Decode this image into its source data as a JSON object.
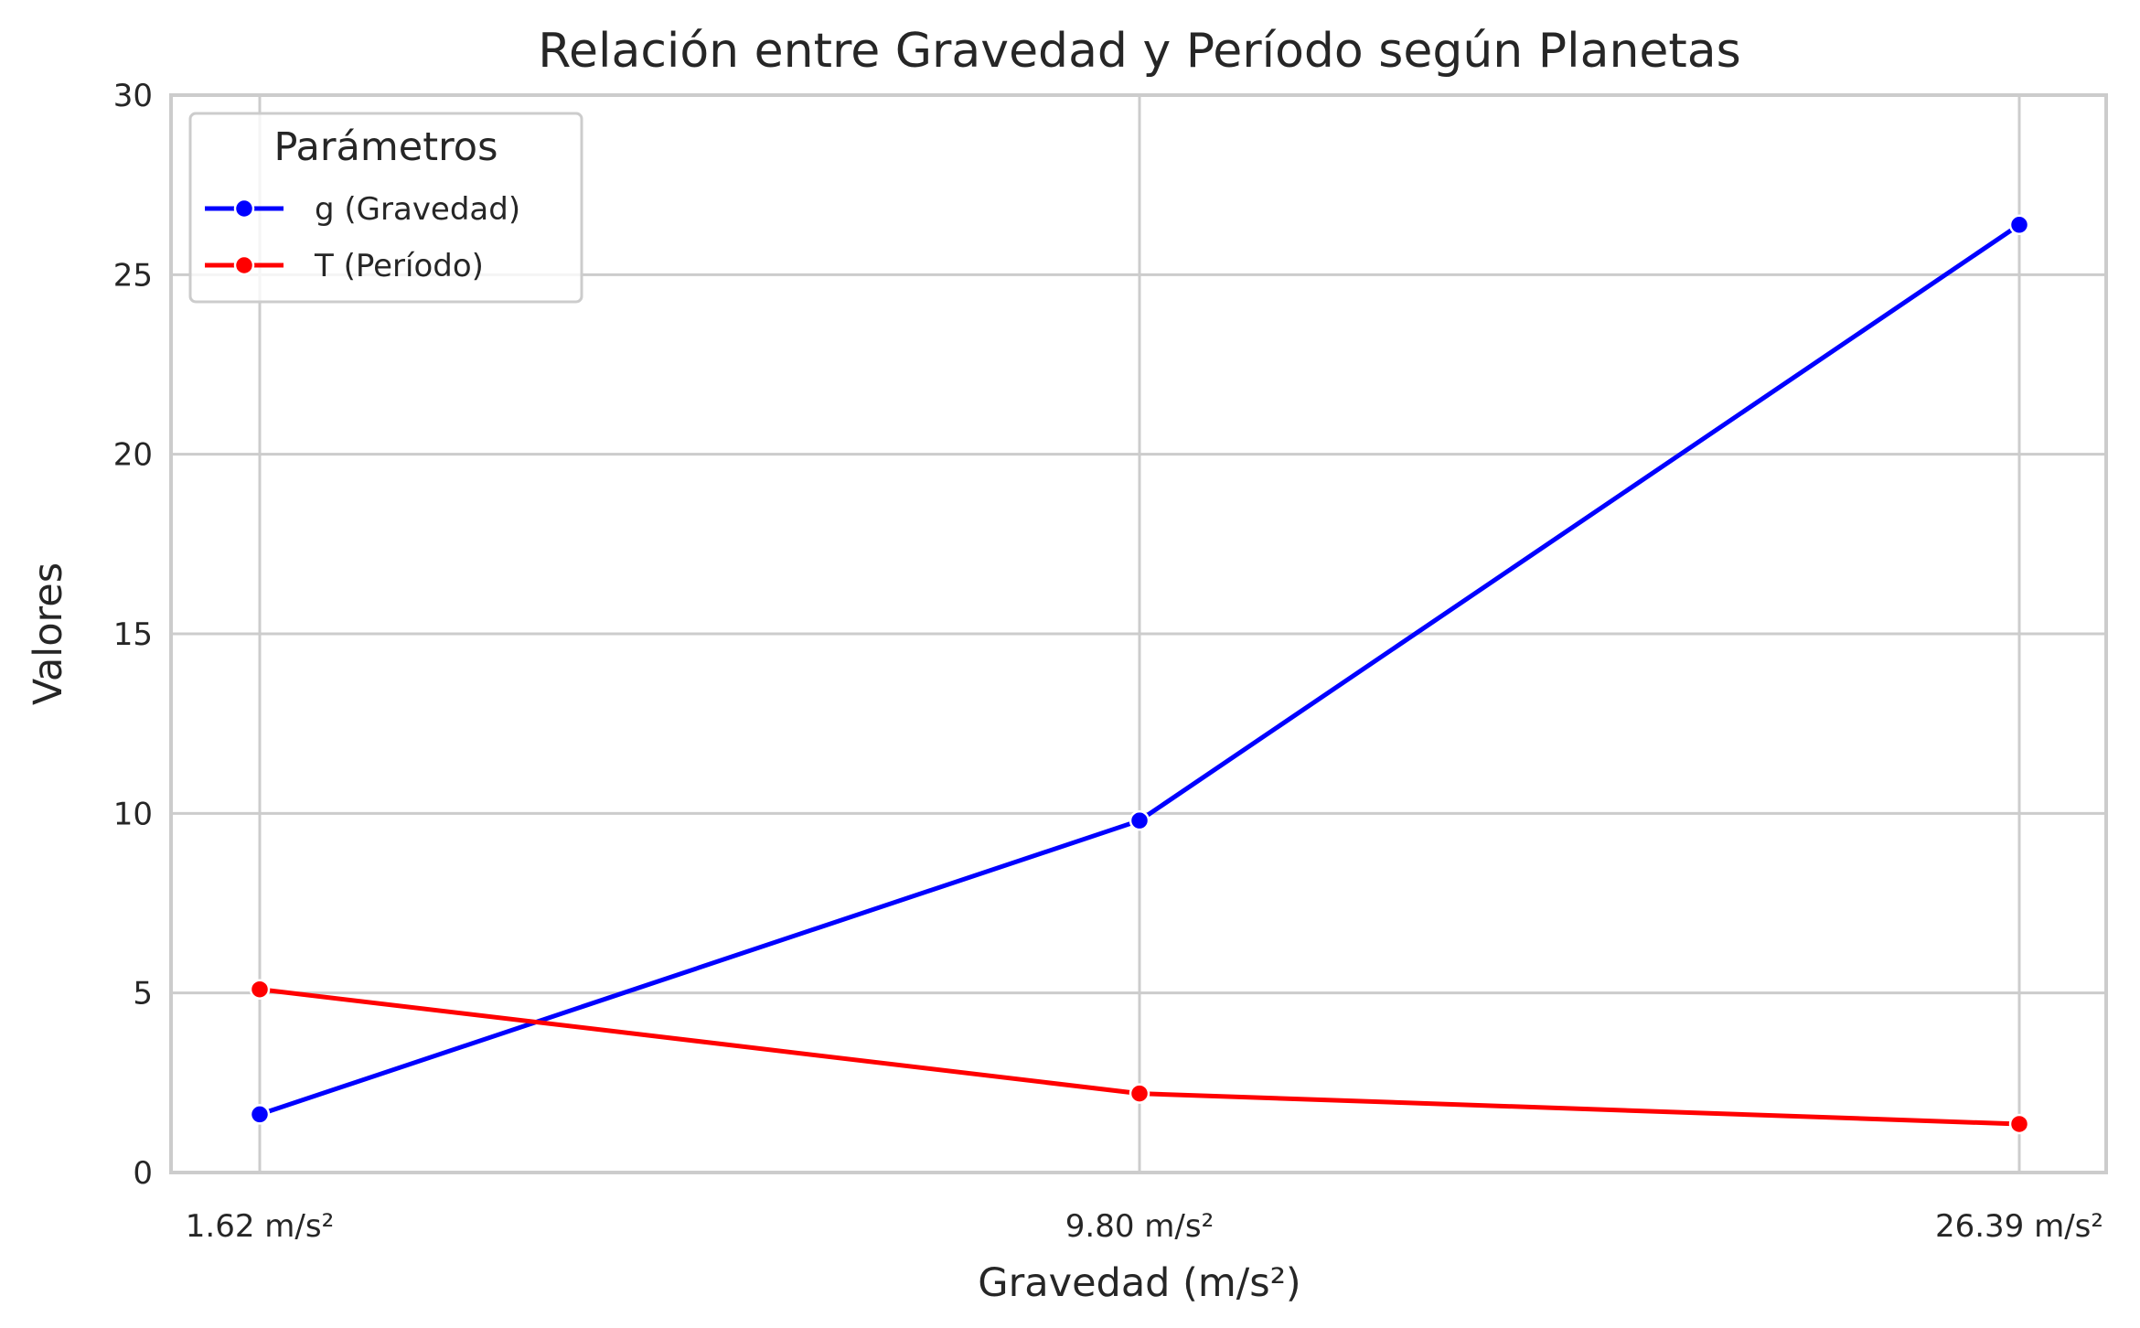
{
  "chart_data": {
    "type": "line",
    "title": "Relación entre Gravedad y Período según Planetas",
    "xlabel": "Gravedad (m/s²)",
    "ylabel": "Valores",
    "categories": [
      "1.62 m/s²",
      "9.80 m/s²",
      "26.39 m/s²"
    ],
    "ylim": [
      0,
      30
    ],
    "yticks": [
      "0",
      "5",
      "10",
      "15",
      "20",
      "25",
      "30"
    ],
    "grid": true,
    "legend": {
      "title": "Parámetros",
      "placement": "top-left"
    },
    "series": [
      {
        "name": "g (Gravedad)",
        "values": [
          1.62,
          9.8,
          26.39
        ],
        "color": "#0000ff"
      },
      {
        "name": "T (Período)",
        "values": [
          5.1,
          2.2,
          1.35
        ],
        "color": "#ff0000"
      }
    ]
  }
}
